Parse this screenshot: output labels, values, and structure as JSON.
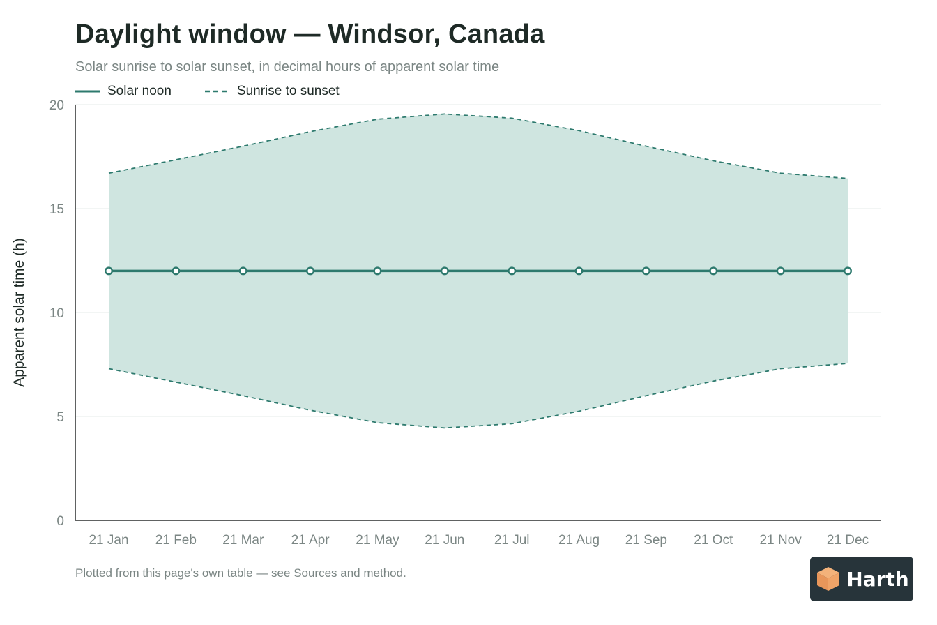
{
  "title": "Daylight window — Windsor, Canada",
  "subtitle": "Solar sunrise to solar sunset, in decimal hours of apparent solar time",
  "legend": {
    "noon_label": "Solar noon",
    "window_label": "Sunrise to sunset"
  },
  "footnote": "Plotted from this page's own table — see Sources and method.",
  "logo": {
    "text": "Harth",
    "icon": "cube-logo-icon"
  },
  "colors": {
    "line": "#2e7a6e",
    "band_fill": "#cfe5e0",
    "grid": "#e6ebea",
    "axis": "#2b2f2e"
  },
  "chart_data": {
    "type": "area",
    "categories": [
      "21 Jan",
      "21 Feb",
      "21 Mar",
      "21 Apr",
      "21 May",
      "21 Jun",
      "21 Jul",
      "21 Aug",
      "21 Sep",
      "21 Oct",
      "21 Nov",
      "21 Dec"
    ],
    "series": [
      {
        "name": "Solar noon",
        "style": "solid-line-markers",
        "values": [
          12,
          12,
          12,
          12,
          12,
          12,
          12,
          12,
          12,
          12,
          12,
          12
        ]
      },
      {
        "name": "Sunrise to sunset",
        "style": "dashed-band",
        "sunrise": [
          7.3,
          6.65,
          6.0,
          5.3,
          4.7,
          4.45,
          4.65,
          5.25,
          6.0,
          6.7,
          7.3,
          7.55
        ],
        "sunset": [
          16.7,
          17.35,
          18.0,
          18.7,
          19.3,
          19.55,
          19.35,
          18.75,
          18.0,
          17.3,
          16.7,
          16.45
        ]
      }
    ],
    "title": "Daylight window — Windsor, Canada",
    "xlabel": "",
    "ylabel": "Apparent solar time (h)",
    "ylim": [
      0,
      20
    ],
    "yticks": [
      "0",
      "5",
      "10",
      "15",
      "20"
    ],
    "grid": true,
    "legend_position": "top-left"
  }
}
